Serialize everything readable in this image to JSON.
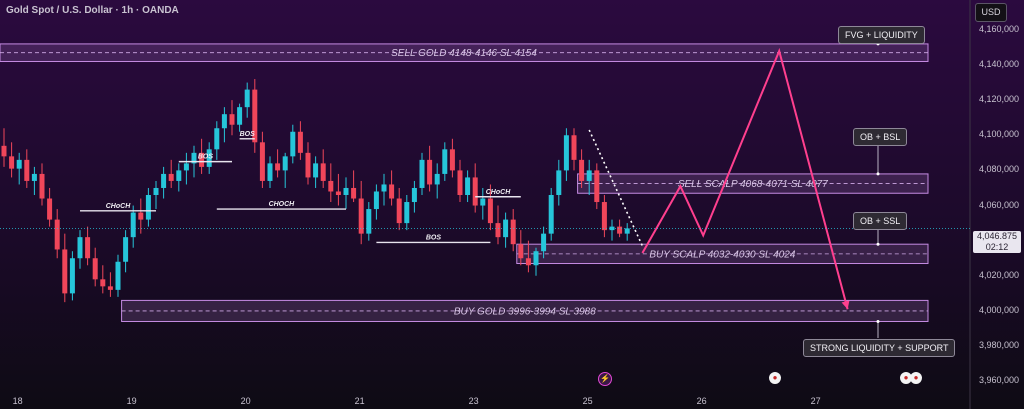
{
  "header": {
    "title": "Gold Spot / U.S. Dollar · 1h · OANDA",
    "currency": "USD"
  },
  "chart_data": {
    "type": "candlestick",
    "symbol": "Gold Spot / U.S. Dollar",
    "timeframe": "1h",
    "source": "OANDA",
    "ylim": [
      3955,
      4177
    ],
    "y_ticks": [
      "4,160,000",
      "4,140,000",
      "4,120,000",
      "4,100,000",
      "4,080,000",
      "4,060,000",
      "4,040,000",
      "4,020,000",
      "4,000,000",
      "3,980,000",
      "3,960,000"
    ],
    "y_tick_values": [
      4160,
      4140,
      4120,
      4100,
      4080,
      4060,
      4040,
      4020,
      4000,
      3980,
      3960
    ],
    "x_ticks": [
      "18",
      "19",
      "20",
      "21",
      "23",
      "25",
      "26",
      "27"
    ],
    "x_tick_values": [
      1.8,
      16.8,
      31.8,
      46.8,
      61.8,
      76.8,
      91.8,
      106.8
    ],
    "current_price": "4,046.875",
    "countdown": "02:12",
    "colors": {
      "up": "#26c6da",
      "down": "#f0465a",
      "projection": "#ff3f8e",
      "zone": "#c58be3"
    },
    "candles": [
      [
        4094,
        4104,
        4082,
        4088
      ],
      [
        4088,
        4096,
        4076,
        4081
      ],
      [
        4081,
        4090,
        4072,
        4086
      ],
      [
        4086,
        4092,
        4070,
        4074
      ],
      [
        4074,
        4082,
        4066,
        4078
      ],
      [
        4078,
        4084,
        4060,
        4064
      ],
      [
        4064,
        4070,
        4048,
        4052
      ],
      [
        4052,
        4058,
        4030,
        4035
      ],
      [
        4035,
        4044,
        4005,
        4010
      ],
      [
        4010,
        4034,
        4006,
        4030
      ],
      [
        4030,
        4046,
        4024,
        4042
      ],
      [
        4042,
        4048,
        4026,
        4030
      ],
      [
        4030,
        4036,
        4014,
        4018
      ],
      [
        4018,
        4026,
        4010,
        4014
      ],
      [
        4014,
        4022,
        4008,
        4012
      ],
      [
        4012,
        4032,
        4008,
        4028
      ],
      [
        4028,
        4046,
        4022,
        4042
      ],
      [
        4042,
        4060,
        4036,
        4056
      ],
      [
        4056,
        4064,
        4044,
        4052
      ],
      [
        4052,
        4070,
        4048,
        4066
      ],
      [
        4066,
        4074,
        4058,
        4070
      ],
      [
        4070,
        4082,
        4064,
        4078
      ],
      [
        4078,
        4086,
        4070,
        4074
      ],
      [
        4074,
        4084,
        4068,
        4080
      ],
      [
        4080,
        4090,
        4072,
        4084
      ],
      [
        4084,
        4094,
        4076,
        4090
      ],
      [
        4090,
        4098,
        4078,
        4082
      ],
      [
        4082,
        4096,
        4078,
        4092
      ],
      [
        4092,
        4108,
        4086,
        4104
      ],
      [
        4104,
        4116,
        4096,
        4112
      ],
      [
        4112,
        4120,
        4100,
        4106
      ],
      [
        4106,
        4118,
        4102,
        4116
      ],
      [
        4116,
        4130,
        4110,
        4126
      ],
      [
        4126,
        4132,
        4090,
        4096
      ],
      [
        4096,
        4102,
        4070,
        4074
      ],
      [
        4074,
        4088,
        4070,
        4084
      ],
      [
        4084,
        4092,
        4076,
        4080
      ],
      [
        4080,
        4090,
        4070,
        4088
      ],
      [
        4088,
        4106,
        4084,
        4102
      ],
      [
        4102,
        4108,
        4086,
        4090
      ],
      [
        4090,
        4096,
        4072,
        4076
      ],
      [
        4076,
        4088,
        4070,
        4084
      ],
      [
        4084,
        4092,
        4070,
        4074
      ],
      [
        4074,
        4084,
        4062,
        4068
      ],
      [
        4068,
        4078,
        4060,
        4066
      ],
      [
        4066,
        4076,
        4058,
        4070
      ],
      [
        4070,
        4080,
        4062,
        4064
      ],
      [
        4064,
        4074,
        4038,
        4044
      ],
      [
        4044,
        4062,
        4040,
        4058
      ],
      [
        4058,
        4072,
        4052,
        4068
      ],
      [
        4068,
        4078,
        4060,
        4072
      ],
      [
        4072,
        4080,
        4060,
        4064
      ],
      [
        4064,
        4070,
        4046,
        4050
      ],
      [
        4050,
        4066,
        4046,
        4062
      ],
      [
        4062,
        4074,
        4056,
        4070
      ],
      [
        4070,
        4090,
        4066,
        4086
      ],
      [
        4086,
        4094,
        4068,
        4072
      ],
      [
        4072,
        4084,
        4064,
        4078
      ],
      [
        4078,
        4096,
        4074,
        4092
      ],
      [
        4092,
        4098,
        4076,
        4080
      ],
      [
        4080,
        4086,
        4062,
        4066
      ],
      [
        4066,
        4080,
        4062,
        4076
      ],
      [
        4076,
        4084,
        4056,
        4060
      ],
      [
        4060,
        4070,
        4052,
        4064
      ],
      [
        4064,
        4072,
        4046,
        4050
      ],
      [
        4050,
        4060,
        4038,
        4042
      ],
      [
        4042,
        4056,
        4036,
        4052
      ],
      [
        4052,
        4058,
        4034,
        4038
      ],
      [
        4038,
        4046,
        4026,
        4030
      ],
      [
        4030,
        4040,
        4022,
        4026
      ],
      [
        4026,
        4036,
        4020,
        4034
      ],
      [
        4034,
        4048,
        4030,
        4044
      ],
      [
        4044,
        4070,
        4040,
        4066
      ],
      [
        4066,
        4086,
        4060,
        4080
      ],
      [
        4080,
        4104,
        4074,
        4100
      ],
      [
        4100,
        4104,
        4080,
        4086
      ],
      [
        4086,
        4092,
        4070,
        4074
      ],
      [
        4074,
        4086,
        4066,
        4080
      ],
      [
        4080,
        4084,
        4058,
        4062
      ],
      [
        4062,
        4066,
        4042,
        4046
      ],
      [
        4046,
        4052,
        4040,
        4048
      ],
      [
        4048,
        4052,
        4042,
        4044
      ],
      [
        4044,
        4050,
        4040,
        4047
      ]
    ],
    "projection": [
      {
        "x": 84,
        "y": 4033
      },
      {
        "x": 89,
        "y": 4071
      },
      {
        "x": 92,
        "y": 4043
      },
      {
        "x": 102,
        "y": 4148
      },
      {
        "x": 111,
        "y": 4001
      }
    ],
    "trendline": [
      [
        77,
        4103
      ],
      [
        84,
        4037
      ]
    ],
    "zones": [
      {
        "label": "SELL GOLD 4148-4146 SL 4154",
        "y1": 4142,
        "y2": 4152,
        "x1": 0,
        "x2": 129
      },
      {
        "label": "SELL SCALP 4068-4071 SL 4077",
        "y1": 4067,
        "y2": 4078,
        "x1": 76,
        "x2": 123
      },
      {
        "label": "BUY SCALP 4032-4030 SL 4024",
        "y1": 4027,
        "y2": 4038,
        "x1": 68,
        "x2": 123
      },
      {
        "label": "BUY GOLD 3996-3994 SL 3988",
        "y1": 3994,
        "y2": 4006,
        "x1": 16,
        "x2": 123
      }
    ],
    "structure_labels": [
      {
        "text": "CHoCH",
        "x": 10,
        "x2": 20,
        "y": 4057
      },
      {
        "text": "BOS",
        "x": 23,
        "x2": 30,
        "y": 4085
      },
      {
        "text": "CHOCH",
        "x": 28,
        "x2": 45,
        "y": 4058
      },
      {
        "text": "BOS",
        "x": 31,
        "x2": 33,
        "y": 4098
      },
      {
        "text": "BOS",
        "x": 49,
        "x2": 64,
        "y": 4039
      },
      {
        "text": "CHoCH",
        "x": 62,
        "x2": 68,
        "y": 4065
      }
    ],
    "callouts": [
      {
        "text": "FVG + LIQUIDITY",
        "y_anchor": 4152
      },
      {
        "text": "OB + BSL",
        "y_anchor": 4078
      },
      {
        "text": "OB + SSL",
        "y_anchor": 4038
      },
      {
        "text": "STRONG LIQUIDITY + SUPPORT",
        "y_anchor": 3994
      }
    ]
  }
}
